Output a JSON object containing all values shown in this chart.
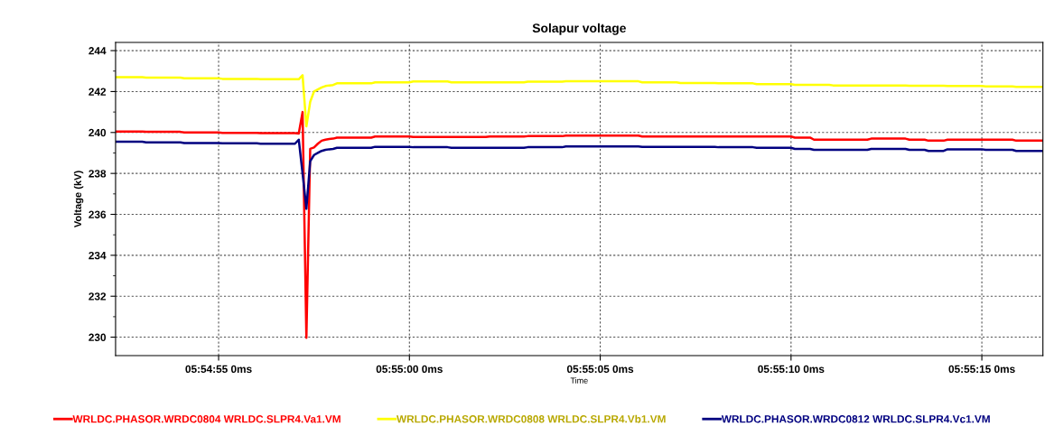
{
  "chart_data": {
    "type": "line",
    "title": "Solapur voltage",
    "xlabel": "Time",
    "ylabel": "Voltage (kV)",
    "categories": [
      null,
      null,
      null,
      null,
      null,
      null,
      null,
      null,
      null,
      null,
      null,
      null,
      null,
      null,
      null,
      null,
      null,
      null,
      null,
      null,
      null,
      null,
      null,
      null,
      null,
      null,
      null,
      "05:54:55 0ms",
      null,
      null,
      null,
      null,
      null,
      null,
      null,
      null,
      null,
      null,
      null,
      null,
      null,
      null,
      null,
      null,
      null,
      null,
      null,
      null,
      null,
      null,
      null,
      null,
      null,
      null,
      null,
      null,
      null,
      null,
      null,
      null,
      null,
      null,
      null,
      null,
      null,
      null,
      null,
      null,
      null,
      null,
      null,
      null,
      null,
      null,
      null,
      null,
      null,
      "05:55:00 0ms",
      null,
      null,
      null,
      null,
      null,
      null,
      null,
      null,
      null,
      null,
      null,
      null,
      null,
      null,
      null,
      null,
      null,
      null,
      null,
      null,
      null,
      null,
      null,
      null,
      null,
      null,
      null,
      null,
      null,
      null,
      null,
      null,
      null,
      null,
      null,
      null,
      null,
      null,
      null,
      null,
      null,
      null,
      null,
      null,
      null,
      null,
      null,
      null,
      null,
      "05:55:05 0ms",
      null,
      null,
      null,
      null,
      null,
      null,
      null,
      null,
      null,
      null,
      null,
      null,
      null,
      null,
      null,
      null,
      null,
      null,
      null,
      null,
      null,
      null,
      null,
      null,
      null,
      null,
      null,
      null,
      null,
      null,
      null,
      null,
      null,
      null,
      null,
      null,
      null,
      null,
      null,
      null,
      null,
      null,
      null,
      null,
      null,
      null,
      null,
      null,
      null,
      "05:55:10 0ms",
      null,
      null,
      null,
      null,
      null,
      null,
      null,
      null,
      null,
      null,
      null,
      null,
      null,
      null,
      null,
      null,
      null,
      null,
      null,
      null,
      null,
      null,
      null,
      null,
      null,
      null,
      null,
      null,
      null,
      null,
      null,
      null,
      null,
      null,
      null,
      null,
      null,
      null,
      null,
      null,
      null,
      null,
      null,
      null,
      null,
      null,
      null,
      null,
      null,
      "05:55:15 0ms",
      null,
      null,
      null,
      null,
      null,
      null,
      null,
      null,
      null,
      null,
      null,
      null,
      null,
      null,
      null,
      null
    ],
    "ylim": [
      229.1,
      244.4
    ],
    "yticks": [
      230,
      {
        "value": 231,
        "label": null
      },
      232,
      {
        "value": 233,
        "label": null
      },
      234,
      {
        "value": 235,
        "label": null
      },
      236,
      {
        "value": 237,
        "label": null
      },
      238,
      {
        "value": 239,
        "label": null
      },
      240,
      {
        "value": 241,
        "label": null
      },
      242,
      {
        "value": 243,
        "label": null
      },
      244
    ],
    "grid": true,
    "legend": "bottom",
    "line_style": "solid",
    "marker": "none",
    "series": [
      {
        "name": "WRLDC.PHASOR.WRDC0804 WRLDC.SLPR4.Va1.VM",
        "color": "#ff0000",
        "values": [
          240.05,
          240.05,
          240.05,
          240.05,
          240.05,
          240.05,
          240.05,
          240.05,
          240.03,
          240.03,
          240.03,
          240.03,
          240.03,
          240.03,
          240.03,
          240.03,
          240.03,
          240.03,
          240.0,
          240.0,
          240.0,
          240.0,
          240.0,
          240.0,
          240.0,
          240.0,
          240.0,
          240.0,
          239.98,
          239.98,
          239.98,
          239.98,
          239.98,
          239.98,
          239.98,
          239.98,
          239.98,
          239.98,
          239.97,
          239.97,
          239.97,
          239.97,
          239.97,
          239.97,
          239.97,
          239.97,
          239.97,
          239.97,
          239.95,
          241.0,
          229.97,
          239.2,
          239.27,
          239.45,
          239.6,
          239.65,
          239.68,
          239.7,
          239.75,
          239.75,
          239.75,
          239.75,
          239.75,
          239.75,
          239.75,
          239.75,
          239.75,
          239.75,
          239.8,
          239.8,
          239.8,
          239.8,
          239.8,
          239.8,
          239.8,
          239.8,
          239.8,
          239.8,
          239.78,
          239.78,
          239.78,
          239.78,
          239.78,
          239.78,
          239.78,
          239.78,
          239.78,
          239.78,
          239.78,
          239.78,
          239.78,
          239.78,
          239.78,
          239.78,
          239.78,
          239.78,
          239.78,
          239.78,
          239.8,
          239.8,
          239.8,
          239.8,
          239.8,
          239.8,
          239.8,
          239.8,
          239.8,
          239.8,
          239.82,
          239.82,
          239.82,
          239.82,
          239.82,
          239.82,
          239.82,
          239.82,
          239.82,
          239.82,
          239.85,
          239.85,
          239.85,
          239.85,
          239.85,
          239.85,
          239.85,
          239.85,
          239.85,
          239.85,
          239.85,
          239.85,
          239.85,
          239.85,
          239.85,
          239.85,
          239.85,
          239.85,
          239.85,
          239.85,
          239.8,
          239.8,
          239.8,
          239.8,
          239.8,
          239.8,
          239.8,
          239.8,
          239.8,
          239.8,
          239.8,
          239.8,
          239.8,
          239.8,
          239.8,
          239.8,
          239.8,
          239.8,
          239.8,
          239.8,
          239.8,
          239.8,
          239.8,
          239.8,
          239.8,
          239.8,
          239.8,
          239.8,
          239.8,
          239.8,
          239.8,
          239.8,
          239.8,
          239.8,
          239.8,
          239.8,
          239.8,
          239.8,
          239.8,
          239.8,
          239.75,
          239.75,
          239.75,
          239.75,
          239.75,
          239.65,
          239.65,
          239.65,
          239.65,
          239.65,
          239.65,
          239.65,
          239.65,
          239.65,
          239.65,
          239.65,
          239.65,
          239.65,
          239.65,
          239.65,
          239.7,
          239.7,
          239.7,
          239.7,
          239.7,
          239.7,
          239.7,
          239.7,
          239.7,
          239.7,
          239.65,
          239.65,
          239.65,
          239.65,
          239.65,
          239.6,
          239.6,
          239.6,
          239.6,
          239.6,
          239.65,
          239.65,
          239.65,
          239.65,
          239.65,
          239.65,
          239.65,
          239.65,
          239.65,
          239.65,
          239.65,
          239.65,
          239.65,
          239.65,
          239.65,
          239.65,
          239.65,
          239.65,
          239.6,
          239.6,
          239.6,
          239.6,
          239.6,
          239.6,
          239.6,
          239.6
        ]
      },
      {
        "name": "WRLDC.PHASOR.WRDC0808 WRLDC.SLPR4.Vb1.VM",
        "color": "#ffff00",
        "values": [
          242.7,
          242.7,
          242.7,
          242.7,
          242.7,
          242.7,
          242.7,
          242.7,
          242.68,
          242.68,
          242.68,
          242.68,
          242.68,
          242.68,
          242.68,
          242.68,
          242.68,
          242.68,
          242.65,
          242.65,
          242.65,
          242.65,
          242.65,
          242.65,
          242.65,
          242.65,
          242.65,
          242.65,
          242.62,
          242.62,
          242.62,
          242.62,
          242.62,
          242.62,
          242.62,
          242.62,
          242.62,
          242.62,
          242.6,
          242.6,
          242.6,
          242.6,
          242.6,
          242.6,
          242.6,
          242.6,
          242.6,
          242.6,
          242.6,
          242.8,
          240.3,
          241.5,
          242.0,
          242.1,
          242.2,
          242.27,
          242.3,
          242.32,
          242.4,
          242.4,
          242.4,
          242.4,
          242.4,
          242.4,
          242.4,
          242.4,
          242.4,
          242.4,
          242.45,
          242.45,
          242.45,
          242.45,
          242.45,
          242.45,
          242.45,
          242.45,
          242.45,
          242.45,
          242.49,
          242.49,
          242.49,
          242.49,
          242.49,
          242.49,
          242.49,
          242.49,
          242.49,
          242.49,
          242.45,
          242.45,
          242.45,
          242.45,
          242.45,
          242.45,
          242.45,
          242.45,
          242.45,
          242.45,
          242.45,
          242.45,
          242.45,
          242.45,
          242.45,
          242.45,
          242.45,
          242.45,
          242.45,
          242.45,
          242.48,
          242.48,
          242.48,
          242.48,
          242.48,
          242.48,
          242.48,
          242.48,
          242.48,
          242.48,
          242.5,
          242.5,
          242.5,
          242.5,
          242.5,
          242.5,
          242.5,
          242.5,
          242.5,
          242.5,
          242.5,
          242.5,
          242.5,
          242.5,
          242.5,
          242.5,
          242.5,
          242.5,
          242.5,
          242.5,
          242.45,
          242.45,
          242.45,
          242.45,
          242.45,
          242.45,
          242.45,
          242.45,
          242.45,
          242.45,
          242.42,
          242.42,
          242.42,
          242.42,
          242.42,
          242.42,
          242.42,
          242.42,
          242.42,
          242.42,
          242.4,
          242.4,
          242.4,
          242.4,
          242.4,
          242.4,
          242.4,
          242.4,
          242.4,
          242.4,
          242.36,
          242.36,
          242.36,
          242.36,
          242.36,
          242.36,
          242.36,
          242.36,
          242.36,
          242.36,
          242.33,
          242.33,
          242.33,
          242.33,
          242.33,
          242.33,
          242.33,
          242.33,
          242.33,
          242.33,
          242.3,
          242.3,
          242.3,
          242.3,
          242.3,
          242.3,
          242.3,
          242.3,
          242.3,
          242.3,
          242.3,
          242.3,
          242.3,
          242.3,
          242.3,
          242.3,
          242.3,
          242.3,
          242.3,
          242.3,
          242.28,
          242.28,
          242.28,
          242.28,
          242.28,
          242.28,
          242.28,
          242.28,
          242.28,
          242.28,
          242.27,
          242.27,
          242.27,
          242.27,
          242.27,
          242.27,
          242.27,
          242.27,
          242.27,
          242.27,
          242.25,
          242.25,
          242.25,
          242.25,
          242.25,
          242.25,
          242.25,
          242.25,
          242.23,
          242.23,
          242.23,
          242.23,
          242.23,
          242.23,
          242.23,
          242.23
        ]
      },
      {
        "name": "WRLDC.PHASOR.WRDC0812 WRLDC.SLPR4.Vc1.VM",
        "color": "#000080",
        "values": [
          239.55,
          239.55,
          239.55,
          239.55,
          239.55,
          239.55,
          239.55,
          239.55,
          239.52,
          239.52,
          239.52,
          239.52,
          239.52,
          239.52,
          239.52,
          239.52,
          239.52,
          239.52,
          239.48,
          239.48,
          239.48,
          239.48,
          239.48,
          239.48,
          239.48,
          239.48,
          239.48,
          239.48,
          239.47,
          239.47,
          239.47,
          239.47,
          239.47,
          239.47,
          239.47,
          239.47,
          239.47,
          239.47,
          239.45,
          239.45,
          239.45,
          239.45,
          239.45,
          239.45,
          239.45,
          239.45,
          239.45,
          239.45,
          239.65,
          238.0,
          236.27,
          238.6,
          238.9,
          239.0,
          239.1,
          239.15,
          239.18,
          239.2,
          239.25,
          239.25,
          239.25,
          239.25,
          239.25,
          239.25,
          239.25,
          239.25,
          239.25,
          239.25,
          239.3,
          239.3,
          239.3,
          239.3,
          239.3,
          239.3,
          239.3,
          239.3,
          239.3,
          239.3,
          239.28,
          239.28,
          239.28,
          239.28,
          239.28,
          239.28,
          239.28,
          239.28,
          239.28,
          239.28,
          239.25,
          239.25,
          239.25,
          239.25,
          239.25,
          239.25,
          239.25,
          239.25,
          239.25,
          239.25,
          239.25,
          239.25,
          239.25,
          239.25,
          239.25,
          239.25,
          239.25,
          239.25,
          239.25,
          239.25,
          239.28,
          239.28,
          239.28,
          239.28,
          239.28,
          239.28,
          239.28,
          239.28,
          239.28,
          239.28,
          239.32,
          239.32,
          239.32,
          239.32,
          239.32,
          239.32,
          239.32,
          239.32,
          239.32,
          239.32,
          239.32,
          239.32,
          239.32,
          239.32,
          239.32,
          239.32,
          239.32,
          239.32,
          239.32,
          239.32,
          239.3,
          239.3,
          239.3,
          239.3,
          239.3,
          239.3,
          239.3,
          239.3,
          239.3,
          239.3,
          239.3,
          239.3,
          239.3,
          239.3,
          239.3,
          239.3,
          239.3,
          239.3,
          239.3,
          239.3,
          239.28,
          239.28,
          239.28,
          239.28,
          239.28,
          239.28,
          239.28,
          239.28,
          239.28,
          239.28,
          239.25,
          239.25,
          239.25,
          239.25,
          239.25,
          239.25,
          239.25,
          239.25,
          239.25,
          239.25,
          239.2,
          239.2,
          239.2,
          239.2,
          239.2,
          239.15,
          239.15,
          239.15,
          239.15,
          239.15,
          239.15,
          239.15,
          239.15,
          239.15,
          239.15,
          239.15,
          239.15,
          239.15,
          239.15,
          239.15,
          239.2,
          239.2,
          239.2,
          239.2,
          239.2,
          239.2,
          239.2,
          239.2,
          239.2,
          239.2,
          239.15,
          239.15,
          239.15,
          239.15,
          239.15,
          239.1,
          239.1,
          239.1,
          239.1,
          239.1,
          239.18,
          239.18,
          239.18,
          239.18,
          239.18,
          239.18,
          239.18,
          239.18,
          239.18,
          239.18,
          239.15,
          239.15,
          239.15,
          239.15,
          239.15,
          239.15,
          239.15,
          239.15,
          239.1,
          239.1,
          239.1,
          239.1,
          239.1,
          239.1,
          239.1,
          239.1
        ]
      }
    ]
  }
}
